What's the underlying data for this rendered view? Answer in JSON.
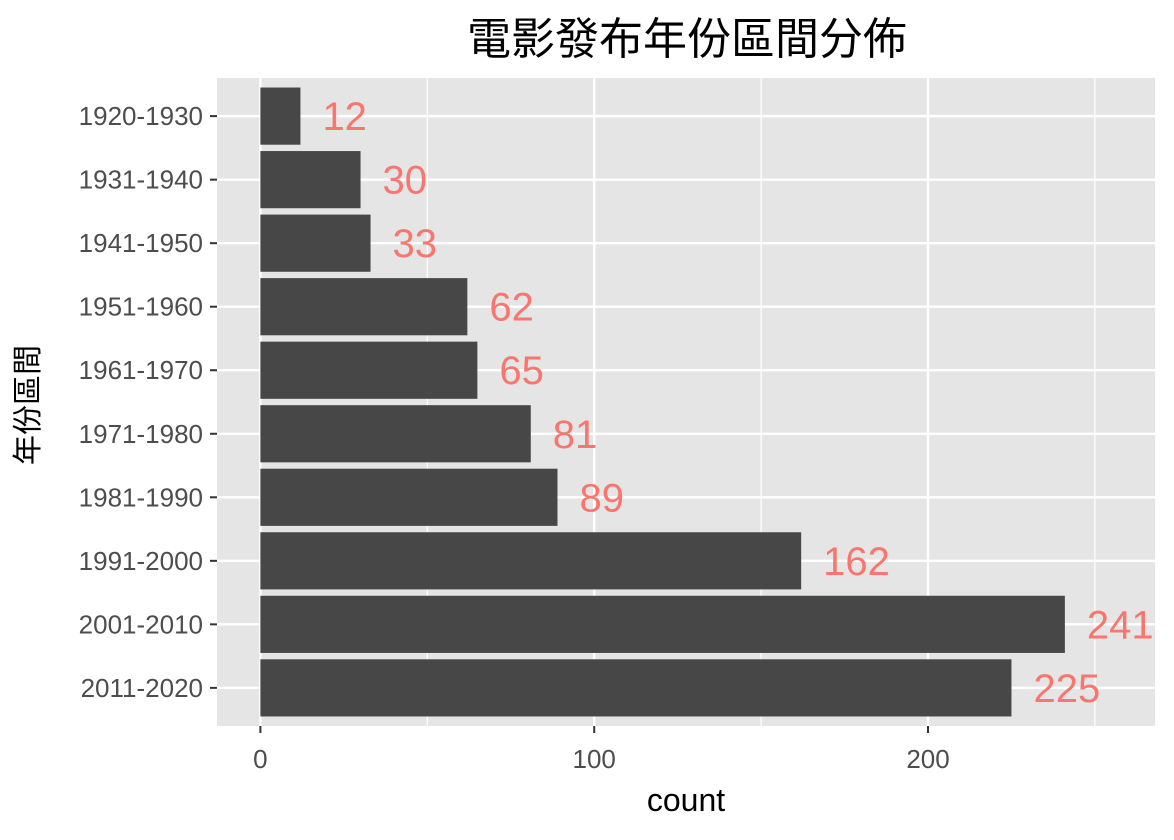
{
  "chart_data": {
    "type": "bar",
    "orientation": "horizontal",
    "title": "電影發布年份區間分佈",
    "xlabel": "count",
    "ylabel": "年份區間",
    "categories": [
      "1920-1930",
      "1931-1940",
      "1941-1950",
      "1951-1960",
      "1961-1970",
      "1971-1980",
      "1981-1990",
      "1991-2000",
      "2001-2010",
      "2011-2020"
    ],
    "values": [
      12,
      30,
      33,
      62,
      65,
      81,
      89,
      162,
      241,
      225
    ],
    "data_labels": [
      "12",
      "30",
      "33",
      "62",
      "65",
      "81",
      "89",
      "162",
      "241",
      "225"
    ],
    "xlim": [
      -13,
      268
    ],
    "x_ticks": [
      0,
      100,
      200
    ],
    "x_tick_labels": [
      "0",
      "100",
      "200"
    ],
    "grid": true,
    "legend": "none",
    "colors": {
      "bar": "#474747",
      "panel": "#e5e5e5",
      "grid": "#ffffff",
      "data_label": "#f8766d"
    }
  }
}
